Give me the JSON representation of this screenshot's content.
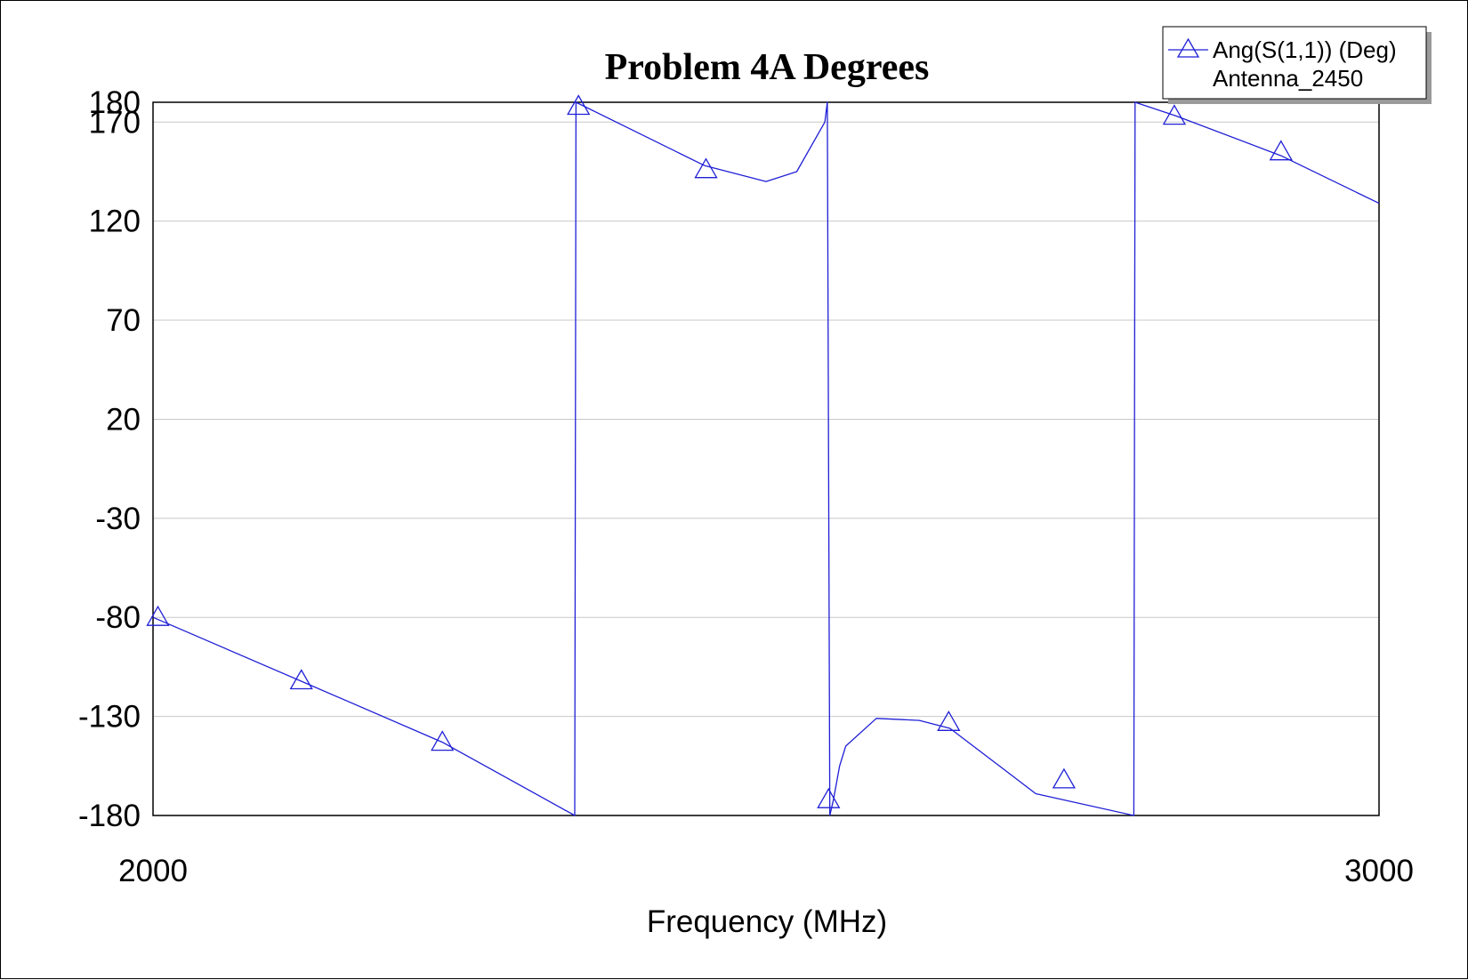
{
  "chart_data": {
    "type": "line",
    "title": "Problem 4A Degrees",
    "xlabel": "Frequency (MHz)",
    "ylabel": "",
    "xlim": [
      2000,
      3000
    ],
    "ylim": [
      -180,
      180
    ],
    "x_ticks": [
      "2000",
      "3000"
    ],
    "y_ticks": [
      180,
      170,
      120,
      70,
      20,
      -30,
      -80,
      -130,
      -180
    ],
    "grid": true,
    "legend": {
      "placement": "top-right",
      "entries": [
        "Ang(S(1,1)) (Deg)",
        "Antenna_2450"
      ]
    },
    "series": [
      {
        "name": "Ang(S(1,1)) (Deg)",
        "color": "#1f1fd6",
        "marker": "triangle",
        "x": [
          2000,
          2120,
          2236,
          2344,
          2345,
          2450,
          2500,
          2525,
          2548,
          2550,
          2552,
          2555,
          2560,
          2565,
          2590,
          2625,
          2650,
          2720,
          2800,
          2801,
          2835,
          2920,
          3000
        ],
        "y": [
          -80,
          -112,
          -143,
          -180,
          180,
          148,
          140,
          145,
          170,
          180,
          -180,
          -172,
          -155,
          -145,
          -131,
          -132,
          -136,
          -169,
          -180,
          180,
          173,
          153,
          129
        ]
      }
    ],
    "markers": [
      {
        "x": 2004,
        "y": -80
      },
      {
        "x": 2121,
        "y": -112
      },
      {
        "x": 2236,
        "y": -143
      },
      {
        "x": 2347,
        "y": 178
      },
      {
        "x": 2451,
        "y": 146
      },
      {
        "x": 2551,
        "y": -172
      },
      {
        "x": 2649,
        "y": -133
      },
      {
        "x": 2743,
        "y": -162
      },
      {
        "x": 2833,
        "y": 173
      },
      {
        "x": 2920,
        "y": 155
      }
    ]
  }
}
